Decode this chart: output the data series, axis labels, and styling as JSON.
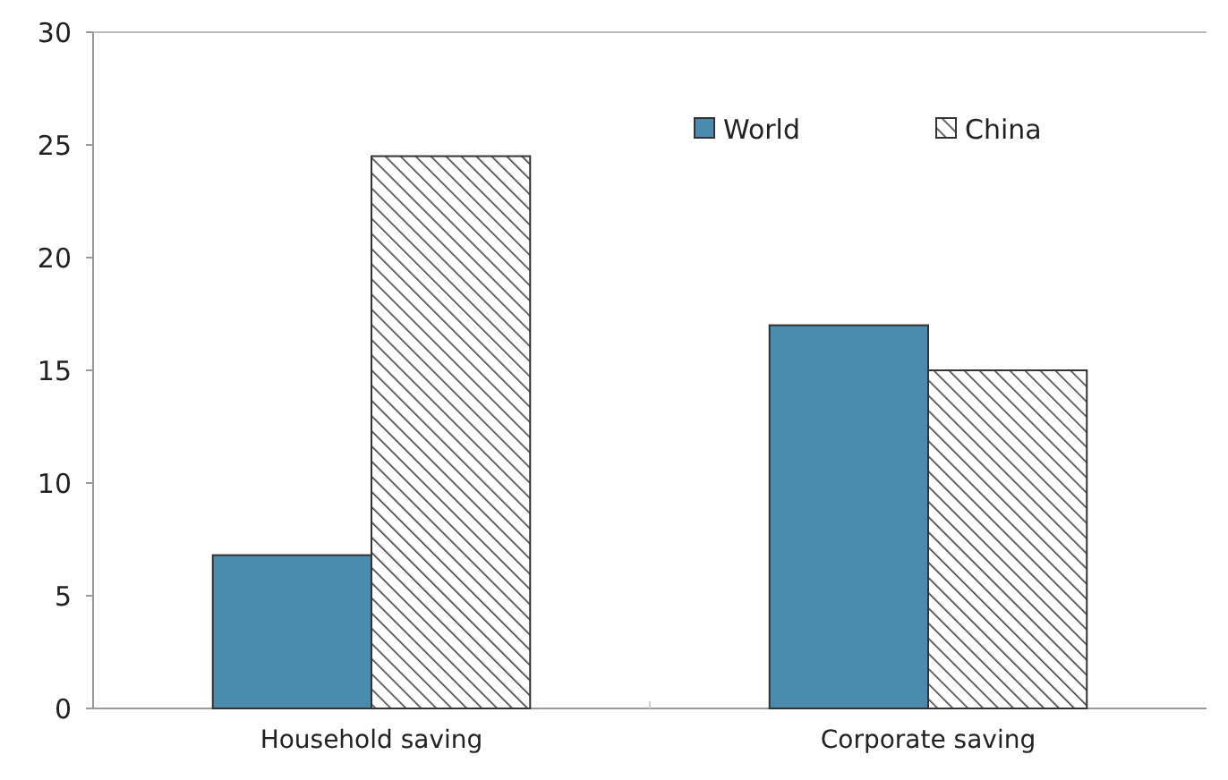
{
  "chart_data": {
    "type": "bar",
    "categories": [
      "Household saving",
      "Corporate saving"
    ],
    "series": [
      {
        "name": "World",
        "color": "#4a8aad",
        "values": [
          6.8,
          17.0
        ]
      },
      {
        "name": "China",
        "color": "#404040",
        "values": [
          24.5,
          15.0
        ]
      }
    ],
    "ylim": [
      0,
      30
    ],
    "yticks": [
      0,
      5,
      10,
      15,
      20,
      25,
      30
    ],
    "legend": "top right"
  }
}
